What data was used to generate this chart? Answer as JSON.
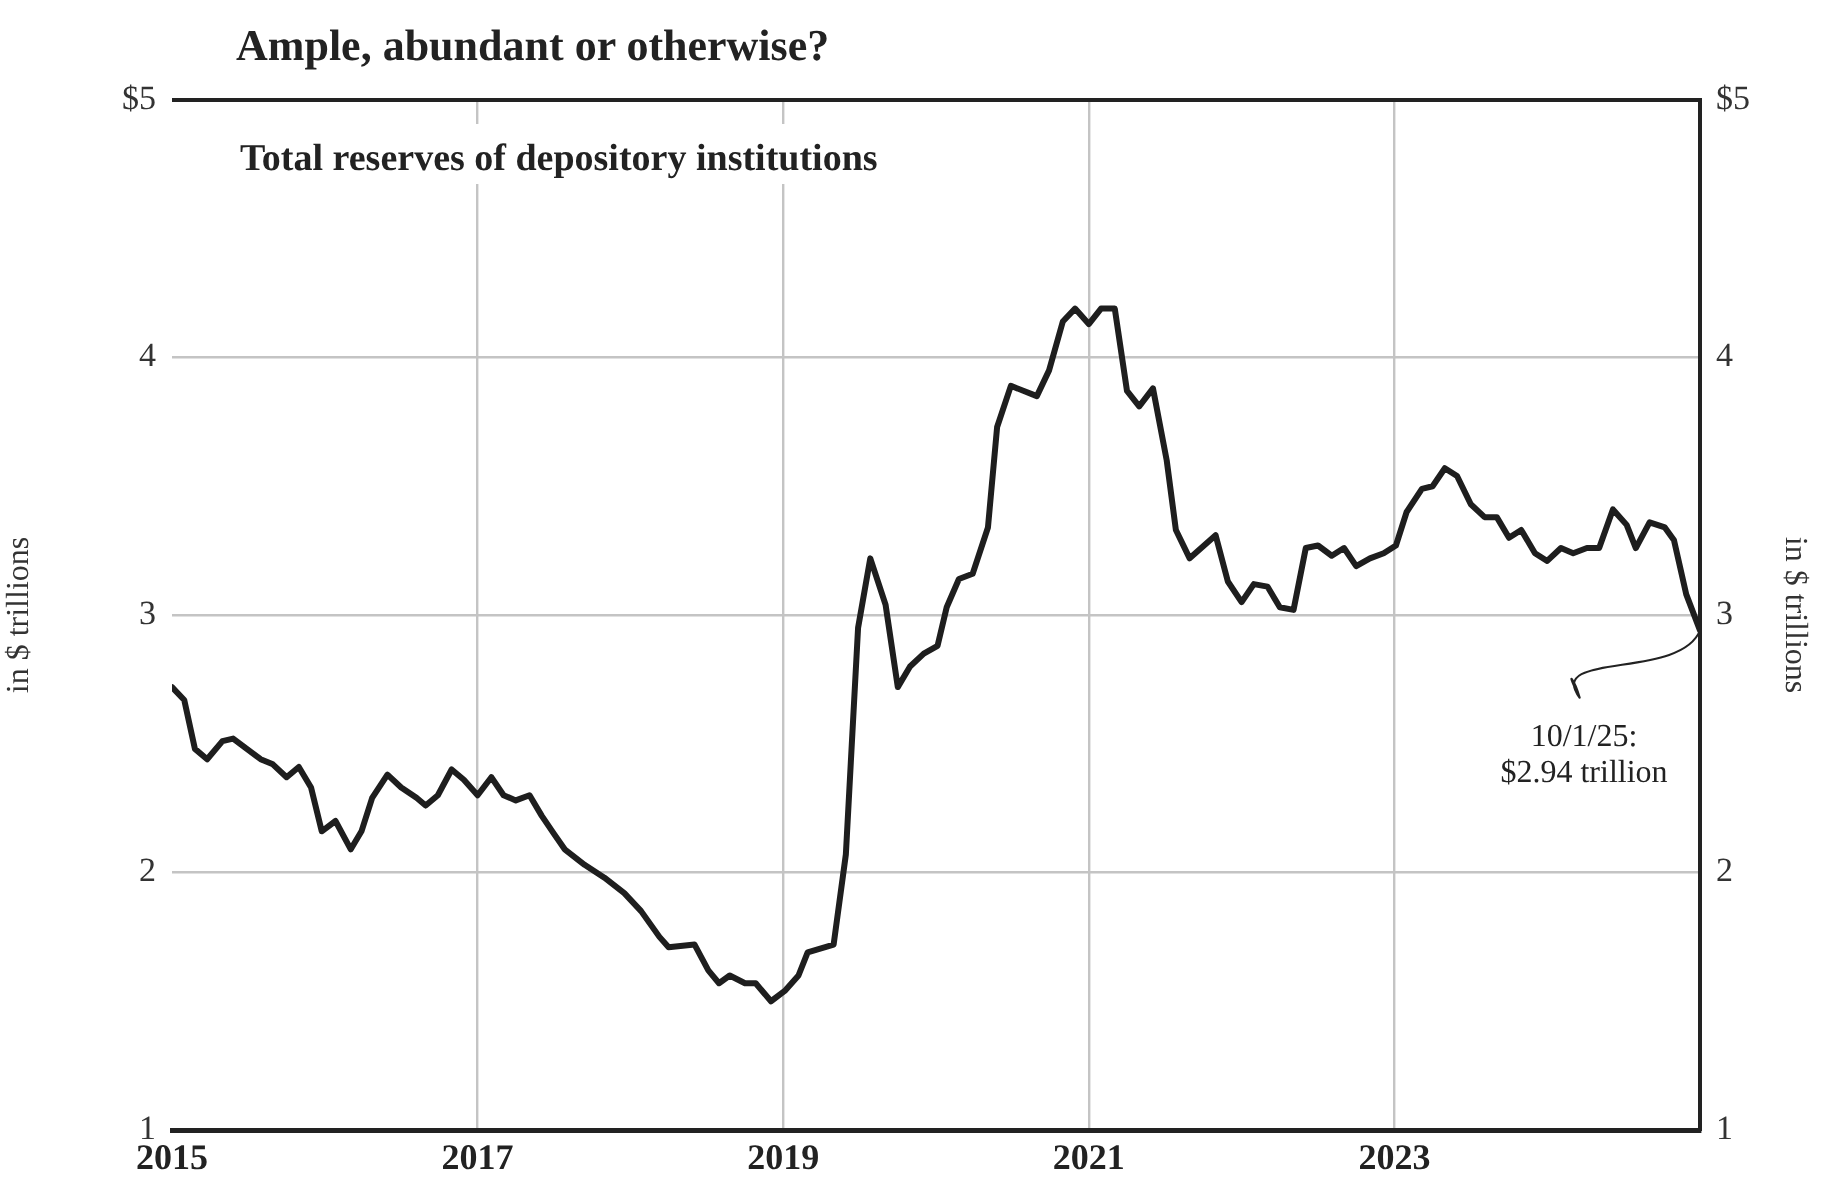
{
  "chart_data": {
    "type": "line",
    "title": "Ample, abundant or otherwise?",
    "subtitle": "Total reserves of depository institutions",
    "ylabel": "in $ trillions",
    "y2label": "in $ trillions",
    "series": [
      {
        "color": "#1e1e1e",
        "x": [
          2015.0,
          2015.08,
          2015.15,
          2015.23,
          2015.33,
          2015.4,
          2015.58,
          2015.66,
          2015.75,
          2015.83,
          2015.91,
          2015.98,
          2016.07,
          2016.17,
          2016.24,
          2016.31,
          2016.41,
          2016.5,
          2016.6,
          2016.66,
          2016.74,
          2016.83,
          2016.91,
          2017.0,
          2017.09,
          2017.17,
          2017.25,
          2017.34,
          2017.42,
          2017.5,
          2017.57,
          2017.7,
          2017.83,
          2017.96,
          2018.07,
          2018.19,
          2018.25,
          2018.42,
          2018.51,
          2018.58,
          2018.65,
          2018.75,
          2018.82,
          2018.92,
          2019.01,
          2019.1,
          2019.16,
          2019.33,
          2019.41,
          2019.49,
          2019.57,
          2019.67,
          2019.75,
          2019.83,
          2019.92,
          2020.01,
          2020.07,
          2020.15,
          2020.24,
          2020.34,
          2020.4,
          2020.49,
          2020.66,
          2020.74,
          2020.83,
          2020.91,
          2021.0,
          2021.08,
          2021.17,
          2021.25,
          2021.33,
          2021.42,
          2021.51,
          2021.57,
          2021.66,
          2021.83,
          2021.91,
          2022.0,
          2022.08,
          2022.17,
          2022.25,
          2022.34,
          2022.42,
          2022.5,
          2022.59,
          2022.67,
          2022.75,
          2022.84,
          2022.93,
          2023.01,
          2023.08,
          2023.18,
          2023.25,
          2023.33,
          2023.41,
          2023.5,
          2023.59,
          2023.67,
          2023.75,
          2023.83,
          2023.92,
          2024.0,
          2024.09,
          2024.17,
          2024.26,
          2024.34,
          2024.43,
          2024.52,
          2024.58,
          2024.67,
          2024.77,
          2024.83,
          2024.91,
          2025.0
        ],
        "values": [
          2.72,
          2.67,
          2.48,
          2.44,
          2.51,
          2.52,
          2.44,
          2.42,
          2.37,
          2.41,
          2.33,
          2.16,
          2.2,
          2.09,
          2.16,
          2.29,
          2.38,
          2.33,
          2.29,
          2.26,
          2.3,
          2.4,
          2.36,
          2.3,
          2.37,
          2.3,
          2.28,
          2.3,
          2.22,
          2.15,
          2.09,
          2.03,
          1.98,
          1.92,
          1.85,
          1.75,
          1.71,
          1.72,
          1.62,
          1.57,
          1.6,
          1.57,
          1.57,
          1.5,
          1.54,
          1.6,
          1.69,
          1.72,
          2.07,
          2.95,
          3.22,
          3.04,
          2.72,
          2.8,
          2.85,
          2.88,
          3.03,
          3.14,
          3.16,
          3.34,
          3.73,
          3.89,
          3.85,
          3.95,
          4.14,
          4.19,
          4.13,
          4.19,
          4.19,
          3.87,
          3.81,
          3.88,
          3.6,
          3.33,
          3.22,
          3.31,
          3.13,
          3.05,
          3.12,
          3.11,
          3.03,
          3.02,
          3.26,
          3.27,
          3.23,
          3.26,
          3.19,
          3.22,
          3.24,
          3.27,
          3.4,
          3.49,
          3.5,
          3.57,
          3.54,
          3.43,
          3.38,
          3.38,
          3.3,
          3.33,
          3.24,
          3.21,
          3.26,
          3.24,
          3.26,
          3.26,
          3.41,
          3.35,
          3.26,
          3.36,
          3.34,
          3.29,
          3.08,
          2.94
        ]
      }
    ],
    "xlim": [
      2015,
      2025
    ],
    "xticks": [
      2015,
      2017,
      2019,
      2021,
      2023
    ],
    "ylim": [
      1,
      5
    ],
    "yticks": [
      1,
      2,
      3,
      4,
      {
        "value": 5,
        "label": "$5"
      }
    ],
    "y2lim": [
      1,
      5
    ],
    "y2ticks": [
      1,
      2,
      3,
      4,
      {
        "value": 5,
        "label": "$5"
      }
    ],
    "grid": true,
    "legend": false,
    "marker": "none",
    "line_style": "solid",
    "annotations": [
      {
        "text": "10/1/25:\n$2.94 trillion",
        "x": 2025.0,
        "y": 2.94
      }
    ]
  }
}
